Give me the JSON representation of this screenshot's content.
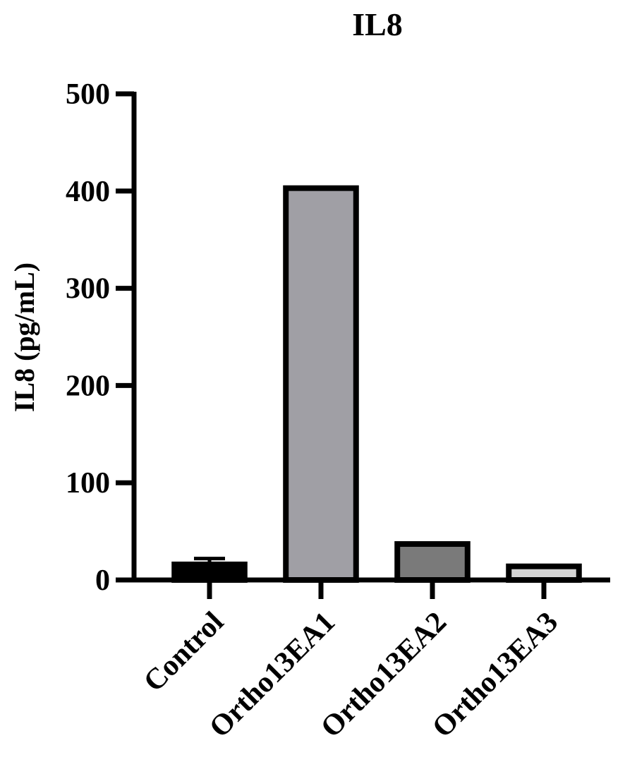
{
  "chart_data": {
    "type": "bar",
    "title": "IL8",
    "y_label": "IL8 (pg/mL)",
    "categories": [
      "Control",
      "Ortho13EA1",
      "Ortho13EA2",
      "Ortho13EA3"
    ],
    "values": [
      16,
      403,
      37,
      14
    ],
    "errors": [
      6,
      null,
      null,
      null
    ],
    "colors": [
      "#000000",
      "#a09fa5",
      "#7a7a7a",
      "#d4d4d4"
    ],
    "ylim": [
      0,
      500
    ],
    "yticks": [
      0,
      100,
      200,
      300,
      400,
      500
    ]
  }
}
